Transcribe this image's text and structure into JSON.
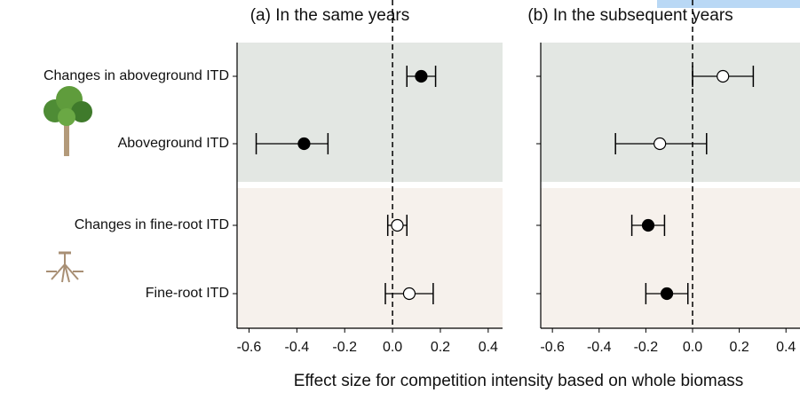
{
  "chart_data": {
    "type": "forest",
    "categories": [
      "Changes in aboveground ITD",
      "Aboveground ITD",
      "Changes in fine-root ITD",
      "Fine-root ITD"
    ],
    "xlabel": "Effect size for competition intensity based on whole biomass",
    "band_colors": [
      "#e3e7e3",
      "#f6f1ec"
    ],
    "panels": [
      {
        "title": "(a) In the same years",
        "values": [
          0.12,
          -0.37,
          0.02,
          0.07
        ],
        "lower": [
          0.06,
          -0.57,
          -0.02,
          -0.03
        ],
        "upper": [
          0.18,
          -0.27,
          0.06,
          0.17
        ],
        "filled": [
          true,
          true,
          false,
          false
        ],
        "xlim": [
          -0.65,
          0.46
        ],
        "xticks": [
          -0.6,
          -0.4,
          -0.2,
          {
            "value": 0,
            "label": "0.0"
          },
          0.2,
          0.4
        ]
      },
      {
        "title": "(b) In the subsequent years",
        "values": [
          0.13,
          -0.14,
          -0.19,
          -0.11
        ],
        "lower": [
          0.0,
          -0.33,
          -0.26,
          -0.2
        ],
        "upper": [
          0.26,
          0.06,
          -0.12,
          -0.02
        ],
        "filled": [
          false,
          false,
          true,
          true
        ],
        "xlim": [
          -0.65,
          0.46
        ],
        "xticks": [
          -0.6,
          -0.4,
          -0.2,
          {
            "value": 0,
            "label": "0.0"
          },
          0.2,
          0.4
        ]
      }
    ]
  }
}
